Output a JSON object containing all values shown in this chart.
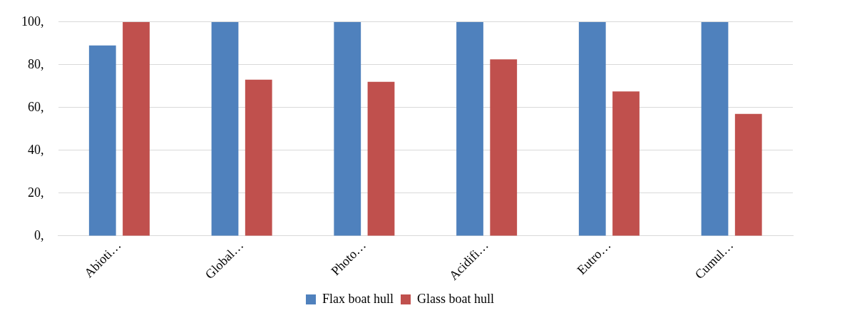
{
  "chart_data": {
    "type": "bar",
    "categories": [
      "Abioti…",
      "Global…",
      "Photo…",
      "Acidifi…",
      "Eutro…",
      "Cumul…"
    ],
    "series": [
      {
        "name": "Flax boat hull",
        "color": "#4f81bd",
        "values": [
          89,
          100,
          100,
          100,
          100,
          100
        ]
      },
      {
        "name": "Glass boat hull",
        "color": "#c0504d",
        "values": [
          100,
          73,
          72,
          82.5,
          67.5,
          57
        ]
      }
    ],
    "ylim": [
      0,
      100
    ],
    "yticks": [
      {
        "value": 0,
        "label": "0,"
      },
      {
        "value": 20,
        "label": "20,"
      },
      {
        "value": 40,
        "label": "40,"
      },
      {
        "value": 60,
        "label": "60,"
      },
      {
        "value": 80,
        "label": "80,"
      },
      {
        "value": 100,
        "label": "100,"
      }
    ],
    "grid": "y",
    "legend": "bottom"
  }
}
